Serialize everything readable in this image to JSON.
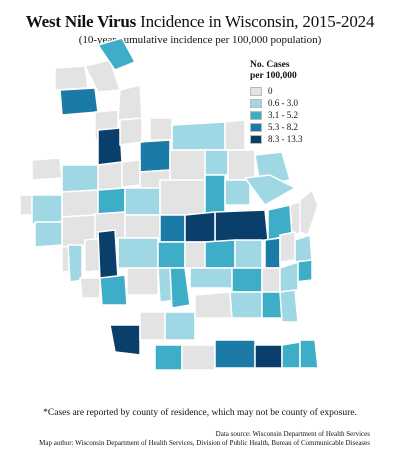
{
  "title_bold": "West Nile Virus",
  "title_rest": " Incidence in Wisconsin, 2015-2024",
  "subtitle": "(10-year cumulative incidence per 100,000 population)",
  "legend": {
    "title_line1": "No. Cases",
    "title_line2": "per 100,000",
    "items": [
      {
        "label": "0",
        "color": "#e3e3e3"
      },
      {
        "label": "0.6 - 3.0",
        "color": "#9fd8e4"
      },
      {
        "label": "3.1 - 5.2",
        "color": "#3eaec8"
      },
      {
        "label": "5.3 - 8.2",
        "color": "#1b7aa6"
      },
      {
        "label": "8.3 - 13.3",
        "color": "#0b3f6b"
      }
    ]
  },
  "footnote": "*Cases are reported by county of residence, which may not be county of exposure.",
  "credit_source": "Data source: Wisconsin Department of Health Services",
  "credit_author": "Map author: Wisconsin Department of Health Services, Division of Public Health, Bureau of Communicable Diseases",
  "map": {
    "counties": [
      {
        "c": 0
      },
      {
        "c": 3
      },
      {
        "c": 0
      },
      {
        "c": 2
      },
      {
        "c": 0
      },
      {
        "c": 0
      },
      {
        "c": 4
      },
      {
        "c": 3
      },
      {
        "c": 0
      },
      {
        "c": 1
      },
      {
        "c": 0
      },
      {
        "c": 0
      },
      {
        "c": 0
      },
      {
        "c": 1
      },
      {
        "c": 0
      },
      {
        "c": 0
      },
      {
        "c": 0
      },
      {
        "c": 0
      },
      {
        "c": 1
      },
      {
        "c": 1
      },
      {
        "c": 0
      },
      {
        "c": 0
      },
      {
        "c": 1
      },
      {
        "c": 1
      },
      {
        "c": 0
      },
      {
        "c": 2
      },
      {
        "c": 1
      },
      {
        "c": 0
      },
      {
        "c": 2
      },
      {
        "c": 1
      },
      {
        "c": 1
      },
      {
        "c": 4
      },
      {
        "c": 0
      },
      {
        "c": 0
      },
      {
        "c": 0
      },
      {
        "c": 3
      },
      {
        "c": 4
      },
      {
        "c": 2
      },
      {
        "c": 0
      },
      {
        "c": 0
      },
      {
        "c": 1
      },
      {
        "c": 0
      },
      {
        "c": 4
      },
      {
        "c": 1
      },
      {
        "c": 2
      },
      {
        "c": 0
      },
      {
        "c": 2
      },
      {
        "c": 3
      },
      {
        "c": 0
      },
      {
        "c": 1
      },
      {
        "c": 1
      },
      {
        "c": 2
      },
      {
        "c": 0
      },
      {
        "c": 2
      },
      {
        "c": 0
      },
      {
        "c": 1
      },
      {
        "c": 2
      },
      {
        "c": 1
      },
      {
        "c": 2
      },
      {
        "c": 0
      },
      {
        "c": 1
      },
      {
        "c": 4
      },
      {
        "c": 0
      },
      {
        "c": 1
      },
      {
        "c": 0
      },
      {
        "c": 1
      },
      {
        "c": 2
      },
      {
        "c": 1
      },
      {
        "c": 2
      },
      {
        "c": 0
      },
      {
        "c": 3
      },
      {
        "c": 4
      },
      {
        "c": 2
      },
      {
        "c": 2
      }
    ]
  }
}
